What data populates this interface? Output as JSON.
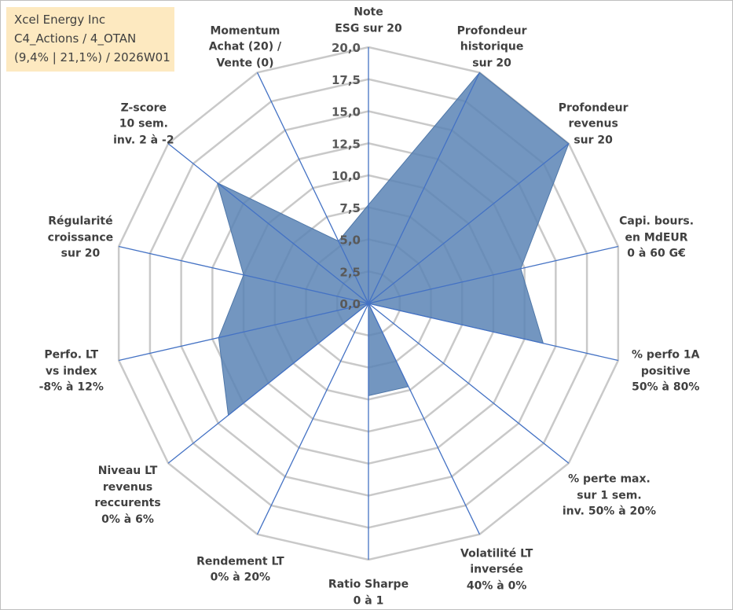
{
  "title_box": {
    "line1": "Xcel Energy Inc",
    "line2": "C4_Actions / 4_OTAN",
    "line3": "(9,4% | 21,1%) / 2026W01"
  },
  "chart_data": {
    "type": "radar",
    "rmin": 0,
    "rmax": 20,
    "ticks": [
      "0,0",
      "2,5",
      "5,0",
      "7,5",
      "10,0",
      "12,5",
      "15,0",
      "17,5",
      "20,0"
    ],
    "categories": [
      [
        "Note",
        "ESG sur 20"
      ],
      [
        "Profondeur",
        "historique",
        "sur 20"
      ],
      [
        "Profondeur",
        "revenus",
        "sur 20"
      ],
      [
        "Capi. bours.",
        "en MdEUR",
        "0 à 60 G€"
      ],
      [
        "% perfo 1A",
        "positive",
        "50% à 80%"
      ],
      [
        "% perte max.",
        "sur 1 sem.",
        "inv. 50% à 20%"
      ],
      [
        "Volatilité LT",
        "inversée",
        "40% à 0%"
      ],
      [
        "Ratio Sharpe",
        "0 à 1"
      ],
      [
        "Rendement LT",
        "0% à 20%"
      ],
      [
        "Niveau LT",
        "revenus",
        "reccurents",
        "0% à 6%"
      ],
      [
        "Perfo. LT",
        "vs index",
        "-8% à 12%"
      ],
      [
        "Régularité",
        "croissance",
        "sur 20"
      ],
      [
        "Z-score",
        "10 sem.",
        "inv. 2 à -2"
      ],
      [
        "Momentum",
        "Achat (20) /",
        "Vente (0)"
      ]
    ],
    "values": [
      7.7,
      20.0,
      20.0,
      12.2,
      14.0,
      0.0,
      7.2,
      7.2,
      0.0,
      14.0,
      12.0,
      10.0,
      15.1,
      5.4
    ],
    "grid": true,
    "series_color": "#5b84b5",
    "axis_color": "#4472c4",
    "grid_color": "#c9c9c9"
  }
}
